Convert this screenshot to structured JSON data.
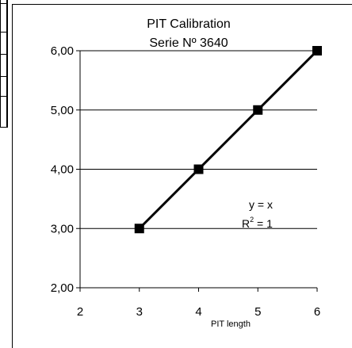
{
  "chart_data": {
    "type": "line",
    "title": "PIT Calibration",
    "subtitle": "Serie Nº 3640",
    "xlabel": "PIT length",
    "ylabel": "",
    "xlim": [
      2,
      6
    ],
    "ylim": [
      2,
      6
    ],
    "x_ticks": [
      2,
      3,
      4,
      5,
      6
    ],
    "x_tick_labels": [
      "2",
      "3",
      "4",
      "5",
      "6"
    ],
    "y_ticks": [
      2,
      3,
      4,
      5,
      6
    ],
    "y_tick_labels": [
      "2,00",
      "3,00",
      "4,00",
      "5,00",
      "6,00"
    ],
    "grid": "horizontal",
    "legend": "none",
    "series": [
      {
        "x": [
          3,
          4,
          5,
          6
        ],
        "y": [
          3,
          4,
          5,
          6
        ]
      }
    ],
    "annotations": {
      "equation": "y = x",
      "r2_prefix": "R",
      "r2_exponent": "2",
      "r2_value": " = 1"
    },
    "colors": {
      "line": "#000000",
      "marker": "#000000",
      "grid": "#000000"
    }
  }
}
